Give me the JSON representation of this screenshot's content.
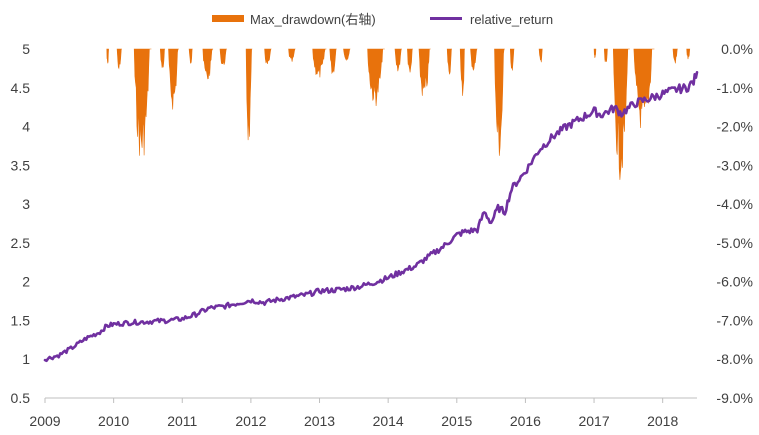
{
  "chart_data": {
    "type": "line+area",
    "title": "",
    "legend_position": "top-center",
    "legend": [
      {
        "name": "Max_drawdown(右轴)",
        "color": "#E8720C",
        "kind": "area"
      },
      {
        "name": "relative_return",
        "color": "#7030A0",
        "kind": "line"
      }
    ],
    "colors": {
      "drawdown": "#E8720C",
      "line": "#7030A0",
      "axis": "#bfbfbf",
      "text": "#404040"
    },
    "x_axis": {
      "range": [
        2009.0,
        2018.5
      ],
      "ticks": [
        2009,
        2010,
        2011,
        2012,
        2013,
        2014,
        2015,
        2016,
        2017,
        2018
      ],
      "tick_labels": [
        "2009",
        "2010",
        "2011",
        "2012",
        "2013",
        "2014",
        "2015",
        "2016",
        "2017",
        "2018"
      ]
    },
    "y_left": {
      "range": [
        0.5,
        5.0
      ],
      "ticks": [
        0.5,
        1,
        1.5,
        2,
        2.5,
        3,
        3.5,
        4,
        4.5,
        5
      ],
      "tick_labels": [
        "0.5",
        "1",
        "1.5",
        "2",
        "2.5",
        "3",
        "3.5",
        "4",
        "4.5",
        "5"
      ]
    },
    "y_right": {
      "range": [
        -9.0,
        0.0
      ],
      "ticks": [
        0,
        -1,
        -2,
        -3,
        -4,
        -5,
        -6,
        -7,
        -8,
        -9
      ],
      "tick_labels": [
        "0.0%",
        "-1.0%",
        "-2.0%",
        "-3.0%",
        "-4.0%",
        "-5.0%",
        "-6.0%",
        "-7.0%",
        "-8.0%",
        "-9.0%"
      ]
    },
    "series": [
      {
        "name": "relative_return",
        "axis": "left",
        "x": [
          2009.0,
          2009.2,
          2009.4,
          2009.6,
          2009.8,
          2009.9,
          2010.0,
          2010.2,
          2010.4,
          2010.6,
          2010.8,
          2011.0,
          2011.2,
          2011.4,
          2011.6,
          2011.8,
          2012.0,
          2012.2,
          2012.4,
          2012.6,
          2012.8,
          2013.0,
          2013.2,
          2013.4,
          2013.6,
          2013.8,
          2014.0,
          2014.2,
          2014.4,
          2014.6,
          2014.8,
          2015.0,
          2015.1,
          2015.3,
          2015.4,
          2015.5,
          2015.6,
          2015.7,
          2015.8,
          2016.0,
          2016.2,
          2016.4,
          2016.6,
          2016.8,
          2017.0,
          2017.1,
          2017.3,
          2017.4,
          2017.6,
          2017.8,
          2018.0,
          2018.2,
          2018.35,
          2018.45,
          2018.5
        ],
        "y": [
          1.0,
          1.05,
          1.15,
          1.27,
          1.35,
          1.43,
          1.45,
          1.47,
          1.48,
          1.49,
          1.5,
          1.52,
          1.58,
          1.66,
          1.68,
          1.72,
          1.76,
          1.73,
          1.77,
          1.8,
          1.83,
          1.88,
          1.89,
          1.91,
          1.94,
          1.99,
          2.05,
          2.13,
          2.2,
          2.33,
          2.45,
          2.6,
          2.64,
          2.67,
          2.9,
          2.76,
          2.95,
          2.9,
          3.2,
          3.42,
          3.7,
          3.87,
          4.0,
          4.1,
          4.2,
          4.15,
          4.24,
          4.17,
          4.3,
          4.36,
          4.42,
          4.48,
          4.5,
          4.58,
          4.7
        ]
      },
      {
        "name": "Max_drawdown",
        "axis": "right",
        "unit": "%",
        "episodes": [
          {
            "start": 2009.9,
            "end": 2009.93,
            "min": -0.5
          },
          {
            "start": 2010.05,
            "end": 2010.12,
            "min": -0.6
          },
          {
            "start": 2010.3,
            "end": 2010.55,
            "min": -3.0
          },
          {
            "start": 2010.68,
            "end": 2010.75,
            "min": -0.6
          },
          {
            "start": 2010.8,
            "end": 2010.95,
            "min": -1.6
          },
          {
            "start": 2011.1,
            "end": 2011.15,
            "min": -0.4
          },
          {
            "start": 2011.3,
            "end": 2011.45,
            "min": -0.9
          },
          {
            "start": 2011.55,
            "end": 2011.65,
            "min": -0.5
          },
          {
            "start": 2011.93,
            "end": 2012.02,
            "min": -2.6
          },
          {
            "start": 2012.2,
            "end": 2012.3,
            "min": -0.5
          },
          {
            "start": 2012.55,
            "end": 2012.65,
            "min": -0.4
          },
          {
            "start": 2012.9,
            "end": 2013.1,
            "min": -0.8
          },
          {
            "start": 2013.15,
            "end": 2013.25,
            "min": -0.7
          },
          {
            "start": 2013.35,
            "end": 2013.45,
            "min": -0.3
          },
          {
            "start": 2013.7,
            "end": 2013.95,
            "min": -1.5
          },
          {
            "start": 2014.1,
            "end": 2014.2,
            "min": -0.6
          },
          {
            "start": 2014.28,
            "end": 2014.36,
            "min": -0.8
          },
          {
            "start": 2014.45,
            "end": 2014.62,
            "min": -1.4
          },
          {
            "start": 2014.86,
            "end": 2014.93,
            "min": -0.7
          },
          {
            "start": 2015.05,
            "end": 2015.12,
            "min": -1.4
          },
          {
            "start": 2015.2,
            "end": 2015.3,
            "min": -0.6
          },
          {
            "start": 2015.55,
            "end": 2015.7,
            "min": -3.0
          },
          {
            "start": 2015.78,
            "end": 2015.84,
            "min": -0.6
          },
          {
            "start": 2016.2,
            "end": 2016.25,
            "min": -0.4
          },
          {
            "start": 2017.0,
            "end": 2017.03,
            "min": -0.3
          },
          {
            "start": 2017.15,
            "end": 2017.2,
            "min": -0.5
          },
          {
            "start": 2017.28,
            "end": 2017.52,
            "min": -3.4
          },
          {
            "start": 2017.58,
            "end": 2017.88,
            "min": -2.2
          },
          {
            "start": 2018.15,
            "end": 2018.22,
            "min": -0.4
          },
          {
            "start": 2018.35,
            "end": 2018.4,
            "min": -0.3
          }
        ]
      }
    ]
  }
}
